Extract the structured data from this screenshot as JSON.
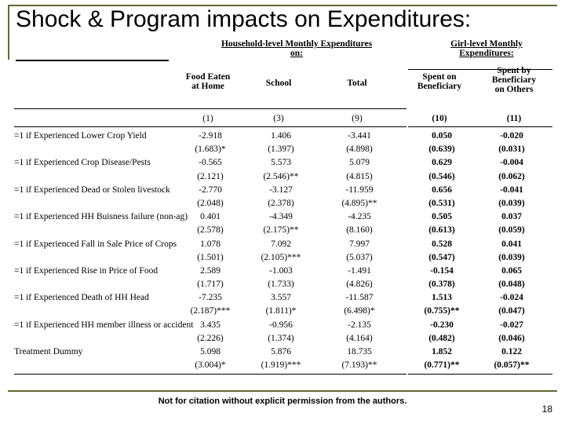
{
  "title": "Shock & Program impacts on Expenditures:",
  "group_headers": {
    "hh": {
      "l1": "Household-level Monthly Expenditures",
      "l2": "on:"
    },
    "girl": {
      "l1": "Girl-level Monthly",
      "l2": "Expenditures:"
    }
  },
  "col_headers": {
    "c1": {
      "l1": "Food Eaten",
      "l2": "at Home"
    },
    "c2": {
      "l1": "School",
      "l2": ""
    },
    "c3": {
      "l1": "Total",
      "l2": ""
    },
    "c4": {
      "l1": "Spent on",
      "l2": "Beneficiary"
    },
    "c5": {
      "l1": "Spent by",
      "l2": "Beneficiary",
      "l3": "on Others"
    }
  },
  "col_nums": {
    "c1": "(1)",
    "c2": "(3)",
    "c3": "(9)",
    "c4": "(10)",
    "c5": "(11)"
  },
  "rows": [
    {
      "label": "=1 if Experienced Lower Crop Yield",
      "v": [
        "-2.918",
        "1.406",
        "-3.441",
        "0.050",
        "-0.020"
      ]
    },
    {
      "label": "",
      "v": [
        "(1.683)*",
        "(1.397)",
        "(4.898)",
        "(0.639)",
        "(0.031)"
      ]
    },
    {
      "label": "=1 if Experienced Crop Disease/Pests",
      "v": [
        "-0.565",
        "5.573",
        "5.079",
        "0.629",
        "-0.004"
      ]
    },
    {
      "label": "",
      "v": [
        "(2.121)",
        "(2.546)**",
        "(4.815)",
        "(0.546)",
        "(0.062)"
      ]
    },
    {
      "label": "=1 if Experienced Dead or Stolen livestock",
      "v": [
        "-2.770",
        "-3.127",
        "-11.959",
        "0.656",
        "-0.041"
      ]
    },
    {
      "label": "",
      "v": [
        "(2.048)",
        "(2.378)",
        "(4.895)**",
        "(0.531)",
        "(0.039)"
      ]
    },
    {
      "label": "=1 if Experienced HH Buisness failure (non-ag)",
      "v": [
        "0.401",
        "-4.349",
        "-4.235",
        "0.505",
        "0.037"
      ]
    },
    {
      "label": "",
      "v": [
        "(2.578)",
        "(2.175)**",
        "(8.160)",
        "(0.613)",
        "(0.059)"
      ]
    },
    {
      "label": "=1 if Experienced Fall in Sale Price of Crops",
      "v": [
        "1.078",
        "7.092",
        "7.997",
        "0.528",
        "0.041"
      ]
    },
    {
      "label": "",
      "v": [
        "(1.501)",
        "(2.105)***",
        "(5.037)",
        "(0.547)",
        "(0.039)"
      ]
    },
    {
      "label": "=1 if Experienced Rise in Price of Food",
      "v": [
        "2.589",
        "-1.003",
        "-1.491",
        "-0.154",
        "0.065"
      ]
    },
    {
      "label": "",
      "v": [
        "(1.717)",
        "(1.733)",
        "(4.826)",
        "(0.378)",
        "(0.048)"
      ]
    },
    {
      "label": "=1 if Experienced Death of HH Head",
      "v": [
        "-7.235",
        "3.557",
        "-11.587",
        "1.513",
        "-0.024"
      ]
    },
    {
      "label": "",
      "v": [
        "(2.187)***",
        "(1.811)*",
        "(6.498)*",
        "(0.755)**",
        "(0.047)"
      ]
    },
    {
      "label": "=1 if Experienced HH member illness or accident",
      "v": [
        "3.435",
        "-0.956",
        "-2.135",
        "-0.230",
        "-0.027"
      ]
    },
    {
      "label": "",
      "v": [
        "(2.226)",
        "(1.374)",
        "(4.164)",
        "(0.482)",
        "(0.046)"
      ]
    },
    {
      "label": "Treatment Dummy",
      "v": [
        "5.098",
        "5.876",
        "18.735",
        "1.852",
        "0.122"
      ]
    },
    {
      "label": "",
      "v": [
        "(3.004)*",
        "(1.919)***",
        "(7.193)**",
        "(0.771)**",
        "(0.057)**"
      ]
    }
  ],
  "footer": "Not for citation without explicit permission from the authors.",
  "page": "18",
  "colors": {
    "rule": "#666633",
    "text": "#000000",
    "bg": "#ffffff"
  }
}
